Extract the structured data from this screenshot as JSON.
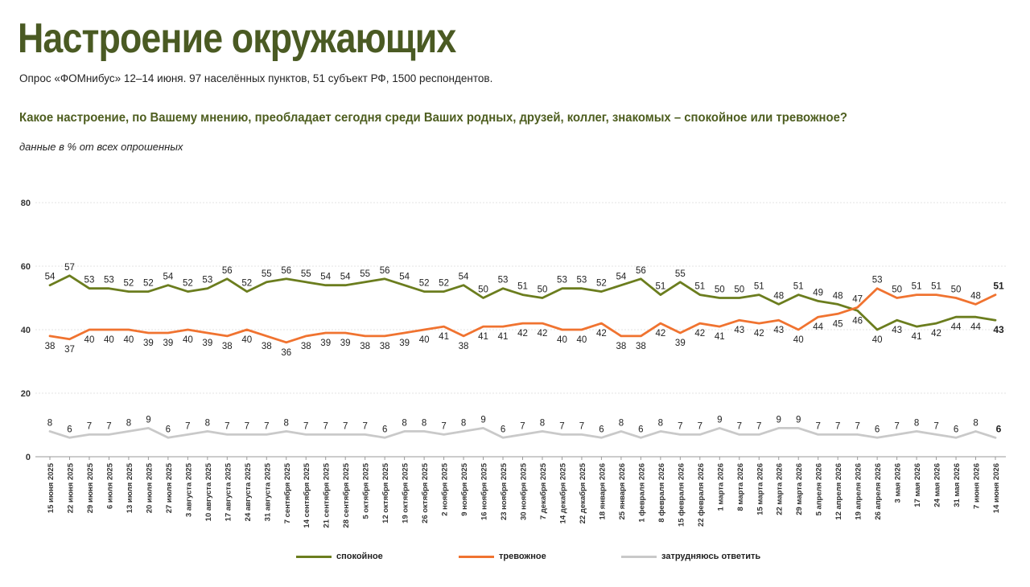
{
  "title": "Настроение окружающих",
  "subtitle": "Опрос «ФОМнибус» 12–14 июня. 97 населённых пунктов, 51 субъект РФ, 1500 респондентов.",
  "question": "Какое настроение, по Вашему мнению, преобладает сегодня среди Ваших родных, друзей, коллег, знакомых – спокойное или тревожное?",
  "units_note": "данные в % от всех опрошенных",
  "chart_data": {
    "type": "line",
    "categories": [
      "15 июня 2025",
      "22 июня 2025",
      "29 июня 2025",
      "6 июля 2025",
      "13 июля 2025",
      "20 июля 2025",
      "27 июля 2025",
      "3 августа 2025",
      "10 августа 2025",
      "17 августа 2025",
      "24 августа 2025",
      "31 августа 2025",
      "7 сентября 2025",
      "14 сентября 2025",
      "21 сентября 2025",
      "28 сентября 2025",
      "5 октября 2025",
      "12 октября 2025",
      "19 октября 2025",
      "26 октября 2025",
      "2 ноября 2025",
      "9 ноября 2025",
      "16 ноября 2025",
      "23 ноября 2025",
      "30 ноября 2025",
      "7 декабря 2025",
      "14 декабря 2025",
      "22 декабря 2025",
      "18 января 2026",
      "25 января 2026",
      "1 февраля 2026",
      "8 февраля 2026",
      "15 февраля 2026",
      "22 февраля 2026",
      "1 марта 2026",
      "8 марта 2026",
      "15 марта 2026",
      "22 марта 2026",
      "29 марта 2026",
      "5 апреля 2026",
      "12 апреля 2026",
      "19 апреля 2026",
      "26 апреля 2026",
      "3 мая 2026",
      "17 мая 2026",
      "24 мая 2026",
      "31 мая 2026",
      "7 июня 2026",
      "14 июня 2026"
    ],
    "series": [
      {
        "name": "спокойное",
        "color": "#6b7d1e",
        "values": [
          54,
          57,
          53,
          53,
          52,
          52,
          54,
          52,
          53,
          56,
          52,
          55,
          56,
          55,
          54,
          54,
          55,
          56,
          54,
          52,
          52,
          54,
          50,
          53,
          51,
          50,
          53,
          53,
          52,
          54,
          56,
          51,
          55,
          51,
          50,
          50,
          51,
          48,
          51,
          49,
          48,
          46,
          40,
          43,
          41,
          42,
          44,
          44,
          43
        ]
      },
      {
        "name": "тревожное",
        "color": "#f07330",
        "values": [
          38,
          37,
          40,
          40,
          40,
          39,
          39,
          40,
          39,
          38,
          40,
          38,
          36,
          38,
          39,
          39,
          38,
          38,
          39,
          40,
          41,
          38,
          41,
          41,
          42,
          42,
          40,
          40,
          42,
          38,
          38,
          42,
          39,
          42,
          41,
          43,
          42,
          43,
          40,
          44,
          45,
          47,
          53,
          50,
          51,
          51,
          50,
          48,
          51
        ]
      },
      {
        "name": "затрудняюсь ответить",
        "color": "#c9c9c9",
        "values": [
          8,
          6,
          7,
          7,
          8,
          9,
          6,
          7,
          8,
          7,
          7,
          7,
          8,
          7,
          7,
          7,
          7,
          6,
          8,
          8,
          7,
          8,
          9,
          6,
          7,
          8,
          7,
          7,
          6,
          8,
          6,
          8,
          7,
          7,
          9,
          7,
          7,
          9,
          9,
          7,
          7,
          7,
          6,
          7,
          8,
          7,
          6,
          8,
          6
        ]
      }
    ],
    "ylim": [
      0,
      80
    ],
    "yticks": [
      0,
      20,
      40,
      60,
      80
    ],
    "grid": true,
    "legend_position": "bottom"
  }
}
